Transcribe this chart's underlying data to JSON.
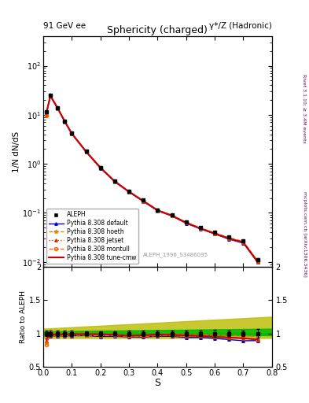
{
  "title_main": "Sphericity (charged)",
  "top_left_label": "91 GeV ee",
  "top_right_label": "γ*/Z (Hadronic)",
  "right_label_top": "Rivet 3.1.10; ≥ 3.4M events",
  "right_label_bottom": "mcplots.cern.ch [arXiv:1306.3436]",
  "watermark": "ALEPH_1996_S3486095",
  "ylabel_main": "1/N dN/dS",
  "ylabel_ratio": "Ratio to ALEPH",
  "xlabel": "S",
  "xlim": [
    0.0,
    0.8
  ],
  "ylim_main_log": [
    0.008,
    400
  ],
  "ylim_ratio": [
    0.5,
    2.0
  ],
  "s_values": [
    0.01,
    0.025,
    0.05,
    0.075,
    0.1,
    0.15,
    0.2,
    0.25,
    0.3,
    0.35,
    0.4,
    0.45,
    0.5,
    0.55,
    0.6,
    0.65,
    0.7,
    0.75
  ],
  "aleph_y": [
    11.5,
    25.0,
    14.0,
    7.5,
    4.2,
    1.8,
    0.85,
    0.45,
    0.28,
    0.18,
    0.115,
    0.09,
    0.065,
    0.05,
    0.04,
    0.032,
    0.027,
    0.011
  ],
  "aleph_yerr": [
    0.5,
    1.0,
    0.5,
    0.3,
    0.15,
    0.06,
    0.03,
    0.015,
    0.01,
    0.007,
    0.005,
    0.004,
    0.003,
    0.002,
    0.002,
    0.0015,
    0.001,
    0.0007
  ],
  "pythia_tune_cmw_y": [
    10.5,
    24.5,
    13.8,
    7.4,
    4.15,
    1.78,
    0.84,
    0.44,
    0.27,
    0.175,
    0.113,
    0.088,
    0.063,
    0.048,
    0.038,
    0.03,
    0.025,
    0.01
  ],
  "pythia_default_y": [
    10.0,
    24.0,
    13.5,
    7.2,
    4.05,
    1.74,
    0.81,
    0.43,
    0.265,
    0.17,
    0.11,
    0.086,
    0.061,
    0.047,
    0.037,
    0.029,
    0.024,
    0.0098
  ],
  "pythia_hoeth_y": [
    9.8,
    24.2,
    13.6,
    7.25,
    4.08,
    1.75,
    0.82,
    0.435,
    0.267,
    0.172,
    0.111,
    0.087,
    0.062,
    0.048,
    0.038,
    0.03,
    0.025,
    0.0099
  ],
  "pythia_jetset_y": [
    10.2,
    24.3,
    13.7,
    7.3,
    4.1,
    1.76,
    0.83,
    0.44,
    0.268,
    0.173,
    0.112,
    0.087,
    0.062,
    0.048,
    0.038,
    0.03,
    0.025,
    0.0099
  ],
  "pythia_montull_y": [
    9.5,
    25.5,
    13.9,
    7.45,
    4.18,
    1.79,
    0.845,
    0.445,
    0.272,
    0.176,
    0.114,
    0.089,
    0.064,
    0.049,
    0.039,
    0.031,
    0.026,
    0.0105
  ],
  "color_tune_cmw": "#cc0000",
  "color_default": "#0000cc",
  "color_hoeth": "#dd8800",
  "color_jetset": "#cc3300",
  "color_montull": "#ff6600",
  "color_aleph": "#000000",
  "band_green": "#00bb00",
  "band_yellow": "#bbbb00"
}
